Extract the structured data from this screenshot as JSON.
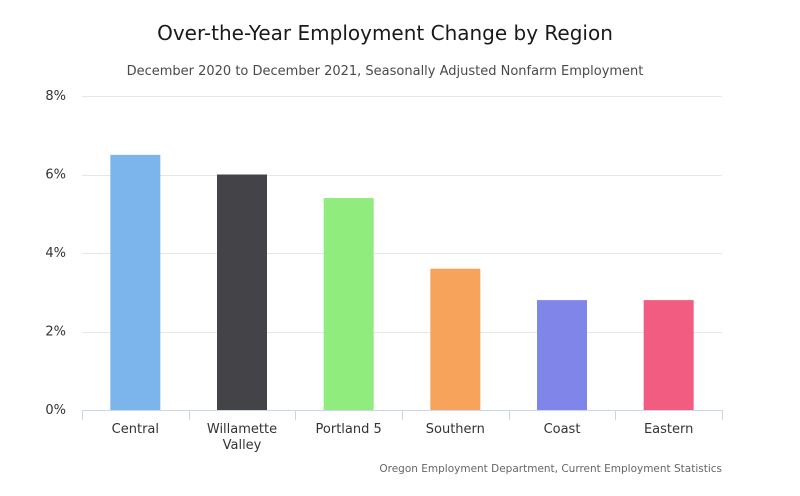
{
  "chart_data": {
    "type": "bar",
    "title": "Over-the-Year Employment Change by Region",
    "subtitle": "December 2020 to December 2021, Seasonally Adjusted Nonfarm Employment",
    "categories": [
      [
        "Central"
      ],
      [
        "Willamette",
        "Valley"
      ],
      [
        "Portland 5"
      ],
      [
        "Southern"
      ],
      [
        "Coast"
      ],
      [
        "Eastern"
      ]
    ],
    "values": [
      6.5,
      6.0,
      5.4,
      3.6,
      2.8,
      2.8
    ],
    "colors": [
      "#7cb5ec",
      "#434348",
      "#90ed7d",
      "#f7a35c",
      "#8085e9",
      "#f15c80"
    ],
    "ylim": [
      0,
      8
    ],
    "yticks": [
      0,
      2,
      4,
      6,
      8
    ],
    "ytick_labels": [
      "0%",
      "2%",
      "4%",
      "6%",
      "8%"
    ],
    "xlabel": "",
    "ylabel": "",
    "grid": true,
    "legend": "none",
    "credit": "Oregon Employment Department, Current Employment Statistics"
  }
}
